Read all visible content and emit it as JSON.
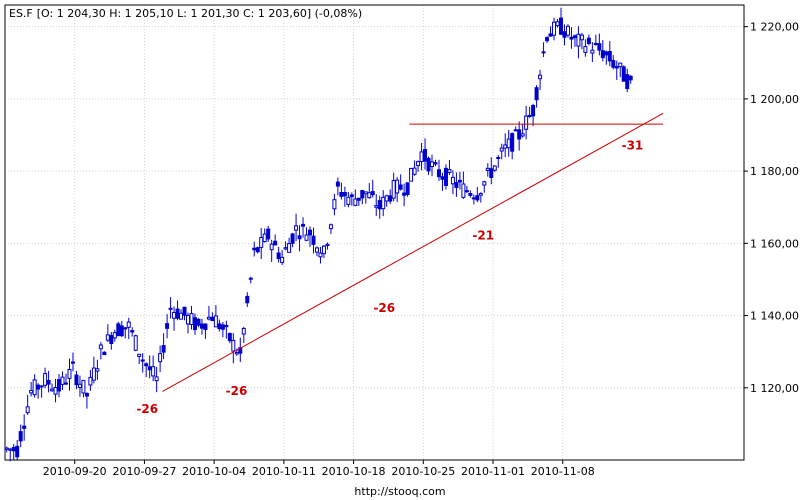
{
  "header": {
    "symbol": "ES.F",
    "ohlc_text": "[O: 1 204,30  H: 1 205,10  L: 1 201,30  C: 1 203,60] (-0,08%)"
  },
  "source": "http://stooq.com",
  "colors": {
    "candle": "#0000cc",
    "grid": "#d0d0d0",
    "trendline": "#cc0000",
    "annotation": "#cc0000",
    "axis": "#000000"
  },
  "chart_data": {
    "type": "candlestick",
    "grid": true,
    "ylim": [
      1100,
      1226
    ],
    "y_ticks": [
      {
        "value": 1120,
        "label": "1 120,00"
      },
      {
        "value": 1140,
        "label": "1 140,00"
      },
      {
        "value": 1160,
        "label": "1 160,00"
      },
      {
        "value": 1180,
        "label": "1 180,00"
      },
      {
        "value": 1200,
        "label": "1 200,00"
      },
      {
        "value": 1220,
        "label": "1 220,00"
      }
    ],
    "x_range": [
      0,
      53
    ],
    "x_ticks": [
      {
        "x": 5,
        "label": "2010-09-20"
      },
      {
        "x": 10,
        "label": "2010-09-27"
      },
      {
        "x": 15,
        "label": "2010-10-04"
      },
      {
        "x": 20,
        "label": "2010-10-11"
      },
      {
        "x": 25,
        "label": "2010-10-18"
      },
      {
        "x": 30,
        "label": "2010-10-25"
      },
      {
        "x": 35,
        "label": "2010-11-01"
      },
      {
        "x": 40,
        "label": "2010-11-08"
      }
    ],
    "daily_closes": [
      1103,
      1119,
      1122,
      1120,
      1125,
      1118,
      1130,
      1136,
      1137,
      1128,
      1122,
      1142,
      1140,
      1137,
      1140,
      1135,
      1129,
      1157,
      1162,
      1156,
      1164,
      1163,
      1157,
      1175,
      1172,
      1174,
      1170,
      1175,
      1176,
      1185,
      1180,
      1178,
      1175,
      1174,
      1180,
      1186,
      1190,
      1197,
      1218,
      1220,
      1216,
      1215,
      1213,
      1209,
      1204
    ],
    "trendlines": [
      {
        "x1": 11.3,
        "y1": 1119,
        "x2": 47.2,
        "y2": 1196
      },
      {
        "x1": 29.0,
        "y1": 1193,
        "x2": 47.2,
        "y2": 1193
      }
    ],
    "annotations": [
      {
        "text": "-26",
        "x": 10.2,
        "y": 1113
      },
      {
        "text": "-26",
        "x": 16.6,
        "y": 1118
      },
      {
        "text": "-26",
        "x": 27.2,
        "y": 1141
      },
      {
        "text": "-21",
        "x": 34.3,
        "y": 1161
      },
      {
        "text": "-31",
        "x": 45.0,
        "y": 1186
      }
    ]
  }
}
